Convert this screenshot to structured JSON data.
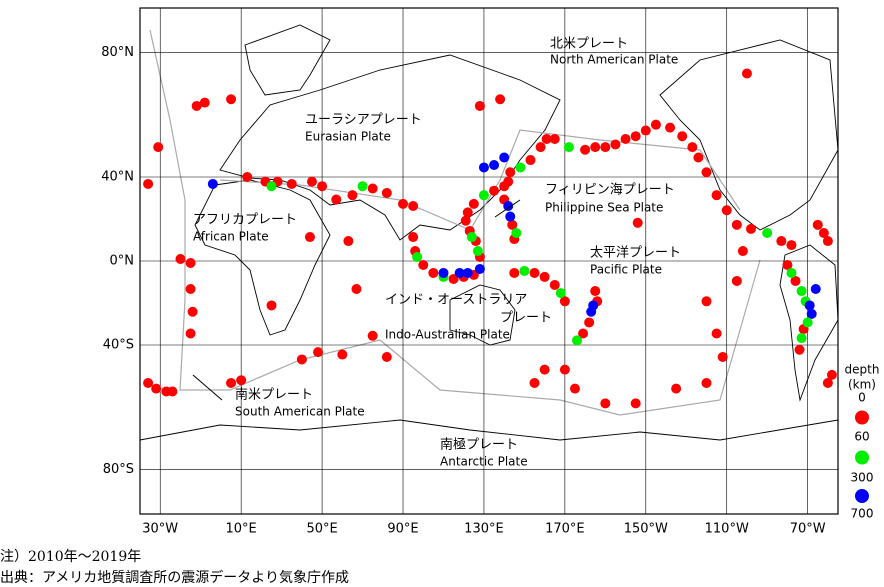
{
  "map": {
    "projection": "miller",
    "lonlim": [
      -40,
      305
    ],
    "latlim": [
      -88.5,
      88.5
    ],
    "lon_ticks": [
      {
        "value": -30,
        "label": "30°W"
      },
      {
        "value": 10,
        "label": "10°E"
      },
      {
        "value": 50,
        "label": "50°E"
      },
      {
        "value": 90,
        "label": "90°E"
      },
      {
        "value": 130,
        "label": "130°E"
      },
      {
        "value": 170,
        "label": "170°E"
      },
      {
        "value": 210,
        "label": "150°W"
      },
      {
        "value": 250,
        "label": "110°W"
      },
      {
        "value": 290,
        "label": "70°W"
      }
    ],
    "lat_ticks": [
      {
        "value": 80,
        "label": "80°N"
      },
      {
        "value": 40,
        "label": "40°N"
      },
      {
        "value": 0,
        "label": "0°N"
      },
      {
        "value": -40,
        "label": "40°S"
      },
      {
        "value": -80,
        "label": "80°S"
      }
    ],
    "grid": true,
    "plates": [
      {
        "jp": "北米プレート",
        "en": "North American Plate"
      },
      {
        "jp": "ユーラシアプレート",
        "en": "Eurasian Plate"
      },
      {
        "jp": "フィリピン海プレート",
        "en": "Philippine Sea Plate"
      },
      {
        "jp": "アフリカプレート",
        "en": "African Plate"
      },
      {
        "jp": "太平洋プレート",
        "en": "Pacific Plate"
      },
      {
        "jp": "インド・オーストラリア",
        "jp2": "プレート",
        "en": "Indo-Australian Plate"
      },
      {
        "jp": "南米プレート",
        "en": "South American Plate"
      },
      {
        "jp": "南極プレート",
        "en": "Antarctic Plate"
      }
    ]
  },
  "legend": {
    "title": [
      "depth",
      "(km)"
    ],
    "levels": [
      0,
      60,
      300,
      700
    ],
    "colors": [
      "#ff0000",
      "#00ee00",
      "#0000ff"
    ]
  },
  "events": [
    [
      -36,
      37,
      10
    ],
    [
      -12,
      66,
      10
    ],
    [
      -8,
      67,
      10
    ],
    [
      5,
      68,
      10
    ],
    [
      -31,
      52,
      10
    ],
    [
      -20,
      1,
      10
    ],
    [
      -15,
      -1,
      10
    ],
    [
      -15,
      -14,
      10
    ],
    [
      -14,
      -25,
      10
    ],
    [
      -15,
      -35,
      10
    ],
    [
      -32,
      -57,
      10
    ],
    [
      -27,
      -58,
      10
    ],
    [
      -24,
      -58,
      10
    ],
    [
      -36,
      -55,
      10
    ],
    [
      10,
      -54,
      10
    ],
    [
      5,
      -55,
      10
    ],
    [
      13,
      40,
      10
    ],
    [
      22,
      38,
      10
    ],
    [
      25,
      36,
      100
    ],
    [
      28,
      38,
      10
    ],
    [
      35,
      37,
      10
    ],
    [
      45,
      38,
      10
    ],
    [
      50,
      36,
      10
    ],
    [
      57,
      30,
      10
    ],
    [
      65,
      32,
      10
    ],
    [
      70,
      36,
      150
    ],
    [
      75,
      35,
      10
    ],
    [
      82,
      33,
      10
    ],
    [
      90,
      28,
      10
    ],
    [
      95,
      27,
      10
    ],
    [
      -4,
      37,
      600
    ],
    [
      44,
      12,
      10
    ],
    [
      63,
      10,
      10
    ],
    [
      67,
      -14,
      10
    ],
    [
      75,
      -36,
      10
    ],
    [
      40,
      -46,
      10
    ],
    [
      48,
      -43,
      10
    ],
    [
      25,
      -22,
      10
    ],
    [
      60,
      -44,
      10
    ],
    [
      82,
      -45,
      10
    ],
    [
      95,
      12,
      10
    ],
    [
      96,
      5,
      10
    ],
    [
      97,
      2,
      100
    ],
    [
      100,
      -2,
      10
    ],
    [
      105,
      -6,
      10
    ],
    [
      110,
      -8,
      200
    ],
    [
      115,
      -9,
      10
    ],
    [
      120,
      -8,
      10
    ],
    [
      125,
      -7,
      10
    ],
    [
      128,
      -4,
      300
    ],
    [
      110,
      -6,
      600
    ],
    [
      118,
      -6,
      600
    ],
    [
      122,
      -6,
      600
    ],
    [
      121,
      20,
      10
    ],
    [
      123,
      15,
      10
    ],
    [
      124,
      12,
      100
    ],
    [
      126,
      10,
      10
    ],
    [
      127,
      5,
      150
    ],
    [
      128,
      2,
      10
    ],
    [
      122,
      24,
      10
    ],
    [
      125,
      28,
      10
    ],
    [
      130,
      32,
      100
    ],
    [
      135,
      34,
      10
    ],
    [
      140,
      36,
      10
    ],
    [
      142,
      38,
      10
    ],
    [
      143,
      42,
      10
    ],
    [
      148,
      44,
      100
    ],
    [
      153,
      47,
      10
    ],
    [
      158,
      52,
      10
    ],
    [
      161,
      55,
      10
    ],
    [
      140,
      48,
      500
    ],
    [
      135,
      45,
      500
    ],
    [
      130,
      44,
      600
    ],
    [
      140,
      30,
      10
    ],
    [
      142,
      27,
      500
    ],
    [
      143,
      22,
      400
    ],
    [
      144,
      18,
      10
    ],
    [
      146,
      14,
      100
    ],
    [
      145,
      11,
      10
    ],
    [
      165,
      55,
      10
    ],
    [
      172,
      52,
      100
    ],
    [
      180,
      51,
      10
    ],
    [
      185,
      52,
      10
    ],
    [
      190,
      52,
      10
    ],
    [
      195,
      53,
      10
    ],
    [
      200,
      55,
      10
    ],
    [
      205,
      56,
      10
    ],
    [
      210,
      58,
      10
    ],
    [
      215,
      60,
      10
    ],
    [
      222,
      59,
      10
    ],
    [
      228,
      56,
      10
    ],
    [
      233,
      52,
      10
    ],
    [
      236,
      48,
      10
    ],
    [
      240,
      42,
      10
    ],
    [
      245,
      32,
      10
    ],
    [
      250,
      25,
      10
    ],
    [
      255,
      18,
      10
    ],
    [
      262,
      16,
      10
    ],
    [
      270,
      14,
      100
    ],
    [
      277,
      10,
      10
    ],
    [
      282,
      8,
      10
    ],
    [
      295,
      18,
      10
    ],
    [
      298,
      14,
      10
    ],
    [
      300,
      10,
      10
    ],
    [
      280,
      -2,
      10
    ],
    [
      282,
      -6,
      100
    ],
    [
      284,
      -10,
      10
    ],
    [
      287,
      -15,
      100
    ],
    [
      289,
      -20,
      100
    ],
    [
      291,
      -22,
      600
    ],
    [
      292,
      -26,
      600
    ],
    [
      290,
      -30,
      100
    ],
    [
      288,
      -33,
      10
    ],
    [
      287,
      -37,
      100
    ],
    [
      286,
      -42,
      10
    ],
    [
      294,
      -14,
      600
    ],
    [
      300,
      -55,
      10
    ],
    [
      302,
      -52,
      10
    ],
    [
      240,
      -20,
      10
    ],
    [
      245,
      -35,
      10
    ],
    [
      248,
      -45,
      10
    ],
    [
      240,
      -55,
      10
    ],
    [
      225,
      -57,
      10
    ],
    [
      205,
      -62,
      10
    ],
    [
      190,
      -62,
      10
    ],
    [
      175,
      -57,
      10
    ],
    [
      170,
      -50,
      10
    ],
    [
      255,
      -10,
      10
    ],
    [
      258,
      5,
      10
    ],
    [
      185,
      -15,
      10
    ],
    [
      186,
      -20,
      10
    ],
    [
      184,
      -22,
      600
    ],
    [
      183,
      -25,
      500
    ],
    [
      182,
      -30,
      10
    ],
    [
      179,
      -35,
      10
    ],
    [
      176,
      -38,
      100
    ],
    [
      160,
      -8,
      10
    ],
    [
      165,
      -12,
      10
    ],
    [
      168,
      -16,
      100
    ],
    [
      170,
      -20,
      10
    ],
    [
      145,
      -6,
      10
    ],
    [
      150,
      -5,
      200
    ],
    [
      155,
      -6,
      10
    ],
    [
      160,
      -50,
      10
    ],
    [
      155,
      -55,
      10
    ],
    [
      206,
      19,
      10
    ],
    [
      260,
      75,
      10
    ],
    [
      138,
      68,
      10
    ],
    [
      128,
      66,
      10
    ]
  ],
  "notes": [
    "注）2010年～2019年",
    "出典：アメリカ地質調査所の震源データより気象庁作成"
  ]
}
